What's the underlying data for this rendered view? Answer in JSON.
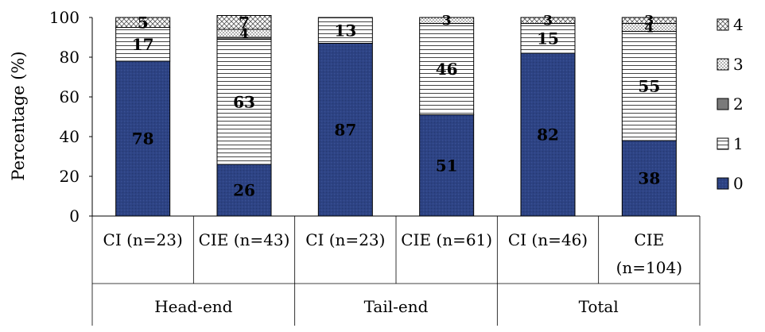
{
  "chart_data": {
    "type": "bar",
    "stacked": true,
    "ylabel": "Percentage (%)",
    "ylim": [
      0,
      100
    ],
    "yticks": [
      0,
      20,
      40,
      60,
      80,
      100
    ],
    "categories": [
      "CI  (n=23)",
      "CIE (n=43)",
      "CI (n=23)",
      "CIE (n=61)",
      "CI (n=46)",
      "CIE (n=104)"
    ],
    "groups": [
      {
        "label": "Head-end",
        "span": 2
      },
      {
        "label": "Tail-end",
        "span": 2
      },
      {
        "label": "Total",
        "span": 2
      }
    ],
    "series": [
      {
        "name": "0",
        "values": [
          78,
          26,
          87,
          51,
          82,
          38
        ],
        "color": "#2d4384",
        "pattern": "dark-dotted",
        "labels": [
          "78",
          "26",
          "87",
          "51",
          "82",
          "38"
        ]
      },
      {
        "name": "1",
        "values": [
          17,
          63,
          13,
          46,
          15,
          55
        ],
        "color": "#ffffff",
        "pattern": "horizontal-lines",
        "labels": [
          "17",
          "63",
          "13",
          "46",
          "15",
          "55"
        ]
      },
      {
        "name": "2",
        "values": [
          0,
          1,
          0,
          0,
          0,
          0
        ],
        "color": "#808080",
        "pattern": "solid-gray",
        "labels": [
          "",
          "",
          "",
          "",
          "",
          ""
        ]
      },
      {
        "name": "3",
        "values": [
          0,
          4,
          0,
          3,
          0,
          4
        ],
        "color": "#ffffff",
        "pattern": "dotted",
        "labels": [
          "",
          "4",
          "",
          "3",
          "",
          "4"
        ]
      },
      {
        "name": "4",
        "values": [
          5,
          7,
          0,
          0,
          3,
          3
        ],
        "color": "#ffffff",
        "pattern": "diagonal-cross",
        "labels": [
          "5",
          "7",
          "",
          "",
          "3",
          "3"
        ]
      }
    ],
    "legend_position": "right",
    "grid": false
  }
}
